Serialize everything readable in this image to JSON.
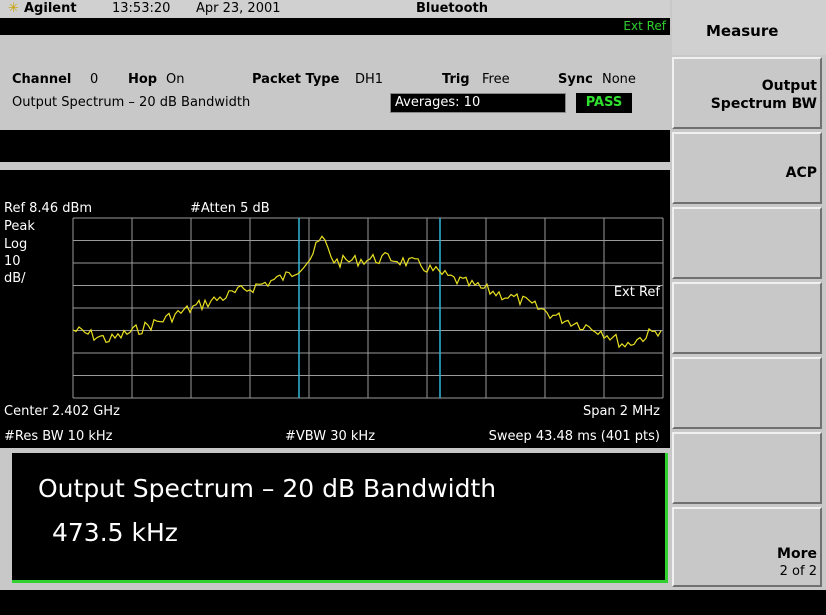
{
  "header": {
    "brand": "Agilent",
    "time": "13:53:20",
    "date": "Apr 23, 2001",
    "mode": "Bluetooth",
    "ext_ref": "Ext Ref"
  },
  "status": {
    "channel_label": "Channel",
    "channel": "0",
    "hop_label": "Hop",
    "hop": "On",
    "packet_label": "Packet Type",
    "packet": "DH1",
    "trig_label": "Trig",
    "trig": "Free",
    "sync_label": "Sync",
    "sync": "None",
    "measurement": "Output Spectrum – 20 dB Bandwidth",
    "averages": "Averages: 10",
    "result_status": "PASS"
  },
  "graph": {
    "ref": "Ref 8.46 dBm",
    "atten": "#Atten 5 dB",
    "detector": "Peak",
    "scale": [
      "Log",
      "10",
      "dB/"
    ],
    "ext_ref": "Ext Ref",
    "center": "Center 2.402 GHz",
    "span": "Span 2 MHz",
    "rbw": "#Res BW 10 kHz",
    "vbw": "#VBW 30 kHz",
    "sweep": "Sweep 43.48 ms (401 pts)"
  },
  "result": {
    "title": "Output Spectrum – 20 dB Bandwidth",
    "value": "473.5 kHz"
  },
  "softkeys": {
    "title": "Measure",
    "keys": [
      {
        "lines": [
          "Output",
          "Spectrum BW"
        ]
      },
      {
        "lines": [
          "ACP"
        ]
      },
      {
        "lines": [
          "More",
          "2 of 2"
        ]
      }
    ]
  }
}
